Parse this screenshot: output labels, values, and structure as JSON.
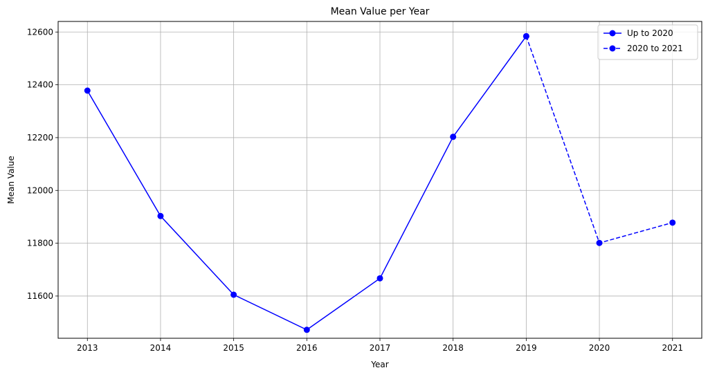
{
  "chart_data": {
    "type": "line",
    "title": "Mean Value per Year",
    "xlabel": "Year",
    "ylabel": "Mean Value",
    "xlim": [
      2012.6,
      2021.4
    ],
    "ylim": [
      11440,
      12640
    ],
    "xticks": [
      2013,
      2014,
      2015,
      2016,
      2017,
      2018,
      2019,
      2020,
      2021
    ],
    "yticks": [
      11600,
      11800,
      12000,
      12200,
      12400,
      12600
    ],
    "grid": true,
    "legend_position": "top-right",
    "series": [
      {
        "name": "Up to 2020",
        "style": "solid",
        "marker": "circle",
        "color": "#0000ff",
        "x": [
          2013,
          2014,
          2015,
          2016,
          2017,
          2018,
          2019
        ],
        "y": [
          12378,
          11903,
          11605,
          11472,
          11667,
          12203,
          12584
        ]
      },
      {
        "name": "2020 to 2021",
        "style": "dashed",
        "marker": "circle",
        "color": "#0000ff",
        "x": [
          2019,
          2020,
          2021
        ],
        "y": [
          12584,
          11801,
          11878
        ]
      }
    ]
  }
}
